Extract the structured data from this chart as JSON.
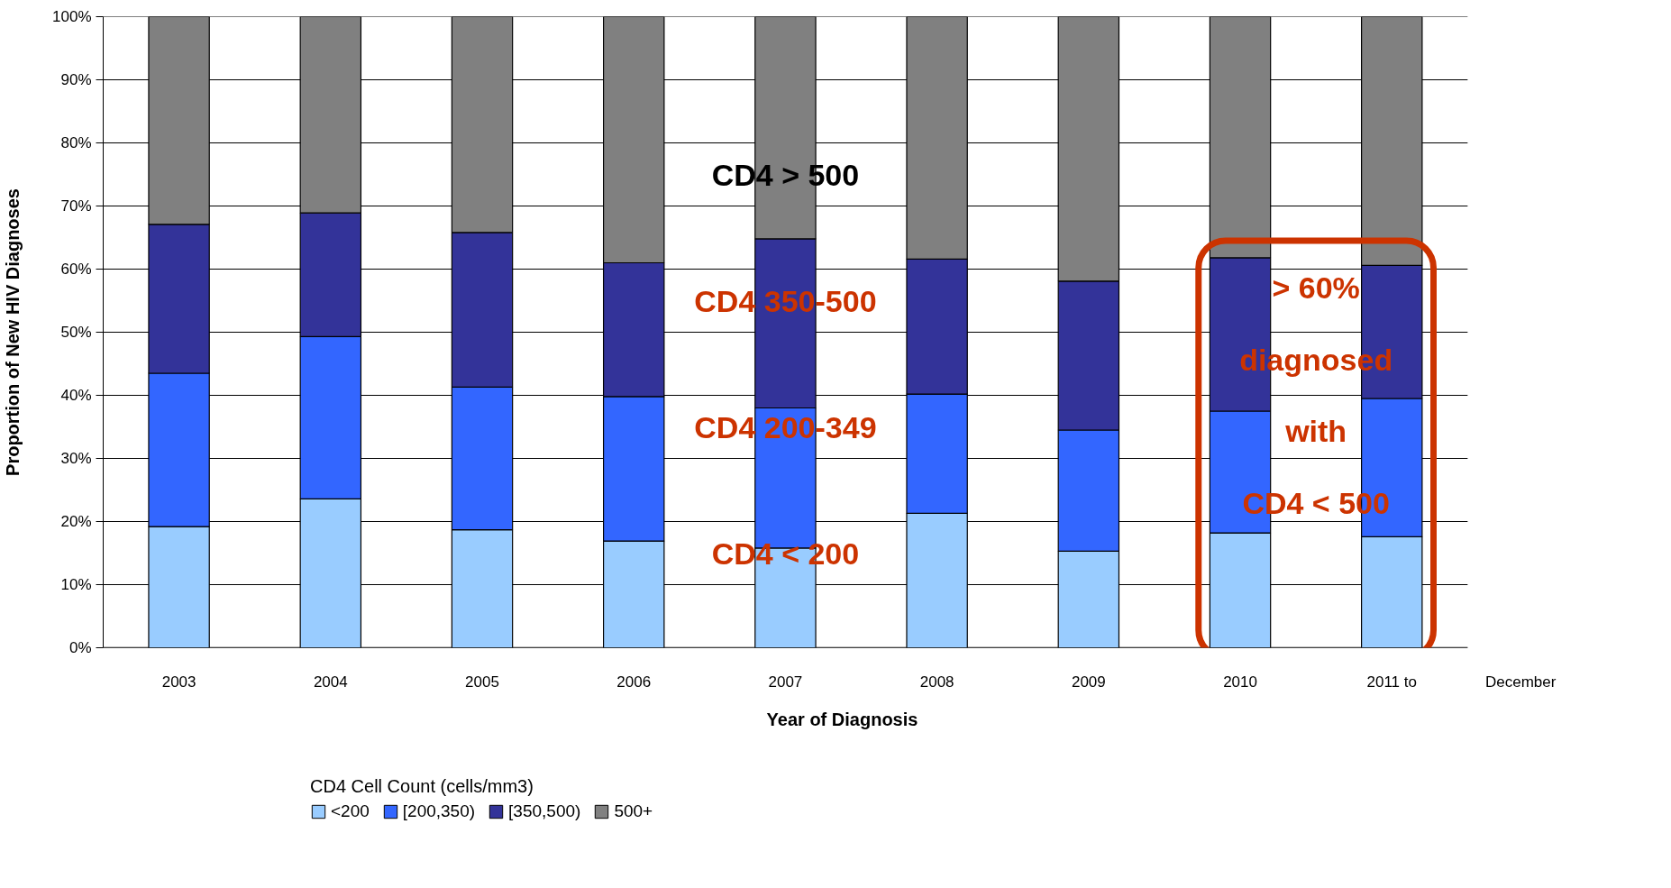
{
  "chart_data": {
    "type": "bar",
    "stacked": true,
    "xlabel": "Year of Diagnosis",
    "ylabel": "Proportion of New HIV Diagnoses",
    "legend_title": "CD4 Cell Count (cells/mm3)",
    "categories": [
      "2003",
      "2004",
      "2005",
      "2006",
      "2007",
      "2008",
      "2009",
      "2010",
      "2011 to"
    ],
    "series": [
      {
        "name": "<200",
        "color": "#99ccff",
        "values": [
          19.2,
          23.6,
          18.7,
          16.9,
          15.8,
          21.3,
          15.3,
          18.2,
          17.6
        ]
      },
      {
        "name": "[200,350)",
        "color": "#3366ff",
        "values": [
          24.3,
          25.7,
          22.6,
          22.9,
          22.2,
          18.9,
          19.2,
          19.3,
          21.9
        ]
      },
      {
        "name": "[350,500)",
        "color": "#333399",
        "values": [
          23.6,
          19.6,
          24.5,
          21.2,
          26.8,
          21.4,
          23.6,
          24.3,
          21.1
        ]
      },
      {
        "name": "500+",
        "color": "#808080",
        "values": [
          32.9,
          31.1,
          34.2,
          39.0,
          35.2,
          38.4,
          41.9,
          38.2,
          39.4
        ]
      }
    ],
    "ylim": [
      0,
      100
    ],
    "yticks": [
      {
        "value": 0,
        "label": "0%"
      },
      {
        "value": 10,
        "label": "10%"
      },
      {
        "value": 20,
        "label": "20%"
      },
      {
        "value": 30,
        "label": "30%"
      },
      {
        "value": 40,
        "label": "40%"
      },
      {
        "value": 50,
        "label": "50%"
      },
      {
        "value": 60,
        "label": "60%"
      },
      {
        "value": 70,
        "label": "70%"
      },
      {
        "value": 80,
        "label": "80%"
      },
      {
        "value": 90,
        "label": "90%"
      },
      {
        "value": 100,
        "label": "100%"
      }
    ],
    "grid": "y",
    "legend": "bottom",
    "annotations": [
      "CD4 > 500",
      "CD4 350-500",
      "CD4 200-349",
      "CD4 < 200",
      "> 60% diagnosed with CD4 < 500",
      "December"
    ]
  }
}
